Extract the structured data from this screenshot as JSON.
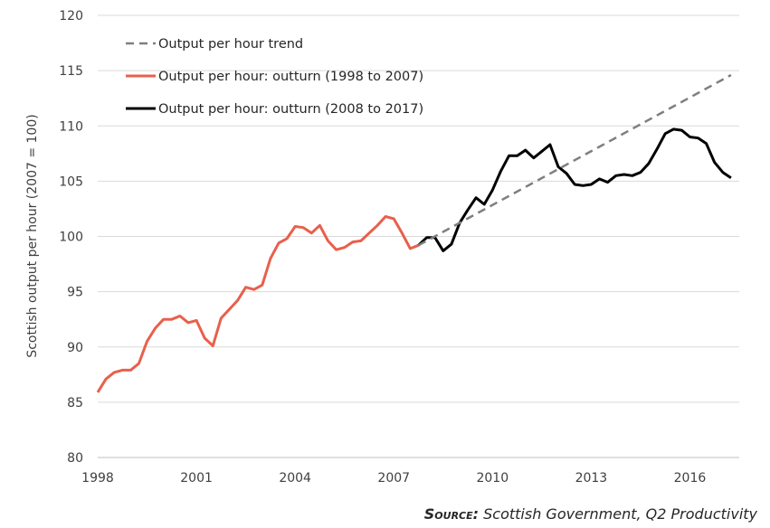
{
  "chart_data": {
    "type": "line",
    "ylabel": "Scottish output per hour (2007 = 100)",
    "xlabel": "",
    "ylim": [
      80,
      120
    ],
    "xlim": [
      1998,
      2017.5
    ],
    "yticks": [
      80,
      85,
      90,
      95,
      100,
      105,
      110,
      115,
      120
    ],
    "xticks": [
      1998,
      2001,
      2004,
      2007,
      2010,
      2013,
      2016
    ],
    "grid": "horizontal",
    "legend_position": "top-left",
    "series": [
      {
        "name": "Output per hour trend",
        "color": "#7f7f7f",
        "style": "dashed",
        "x": [
          2007.75,
          2017.25
        ],
        "y": [
          99.2,
          114.6
        ]
      },
      {
        "name": "Output per hour: outturn (1998 to 2007)",
        "color": "#e8604c",
        "style": "solid",
        "x": [
          1998.0,
          1998.25,
          1998.5,
          1998.75,
          1999.0,
          1999.25,
          1999.5,
          1999.75,
          2000.0,
          2000.25,
          2000.5,
          2000.75,
          2001.0,
          2001.25,
          2001.5,
          2001.75,
          2002.0,
          2002.25,
          2002.5,
          2002.75,
          2003.0,
          2003.25,
          2003.5,
          2003.75,
          2004.0,
          2004.25,
          2004.5,
          2004.75,
          2005.0,
          2005.25,
          2005.5,
          2005.75,
          2006.0,
          2006.25,
          2006.5,
          2006.75,
          2007.0,
          2007.25,
          2007.5,
          2007.75
        ],
        "y": [
          85.9,
          87.1,
          87.7,
          87.9,
          87.9,
          88.5,
          90.5,
          91.7,
          92.5,
          92.5,
          92.8,
          92.2,
          92.4,
          90.8,
          90.1,
          92.6,
          93.4,
          94.2,
          95.4,
          95.2,
          95.6,
          98.0,
          99.4,
          99.8,
          100.9,
          100.8,
          100.3,
          101.0,
          99.6,
          98.8,
          99.0,
          99.5,
          99.6,
          100.3,
          101.0,
          101.8,
          101.6,
          100.3,
          98.9,
          99.2
        ]
      },
      {
        "name": "Output per hour: outturn (2008 to 2017)",
        "color": "#000000",
        "style": "solid",
        "x": [
          2007.75,
          2008.0,
          2008.25,
          2008.5,
          2008.75,
          2009.0,
          2009.25,
          2009.5,
          2009.75,
          2010.0,
          2010.25,
          2010.5,
          2010.75,
          2011.0,
          2011.25,
          2011.5,
          2011.75,
          2012.0,
          2012.25,
          2012.5,
          2012.75,
          2013.0,
          2013.25,
          2013.5,
          2013.75,
          2014.0,
          2014.25,
          2014.5,
          2014.75,
          2015.0,
          2015.25,
          2015.5,
          2015.75,
          2016.0,
          2016.25,
          2016.5,
          2016.75,
          2017.0,
          2017.25
        ],
        "y": [
          99.2,
          99.9,
          99.9,
          98.7,
          99.3,
          101.2,
          102.4,
          103.5,
          102.9,
          104.2,
          105.9,
          107.3,
          107.3,
          107.8,
          107.1,
          107.7,
          108.3,
          106.3,
          105.7,
          104.7,
          104.6,
          104.7,
          105.2,
          104.9,
          105.5,
          105.6,
          105.5,
          105.8,
          106.6,
          107.9,
          109.3,
          109.7,
          109.6,
          109.0,
          108.9,
          108.4,
          106.7,
          105.8,
          105.3
        ]
      }
    ]
  },
  "source": {
    "label": "Source:",
    "text": "Scottish Government, Q2 Productivity"
  }
}
